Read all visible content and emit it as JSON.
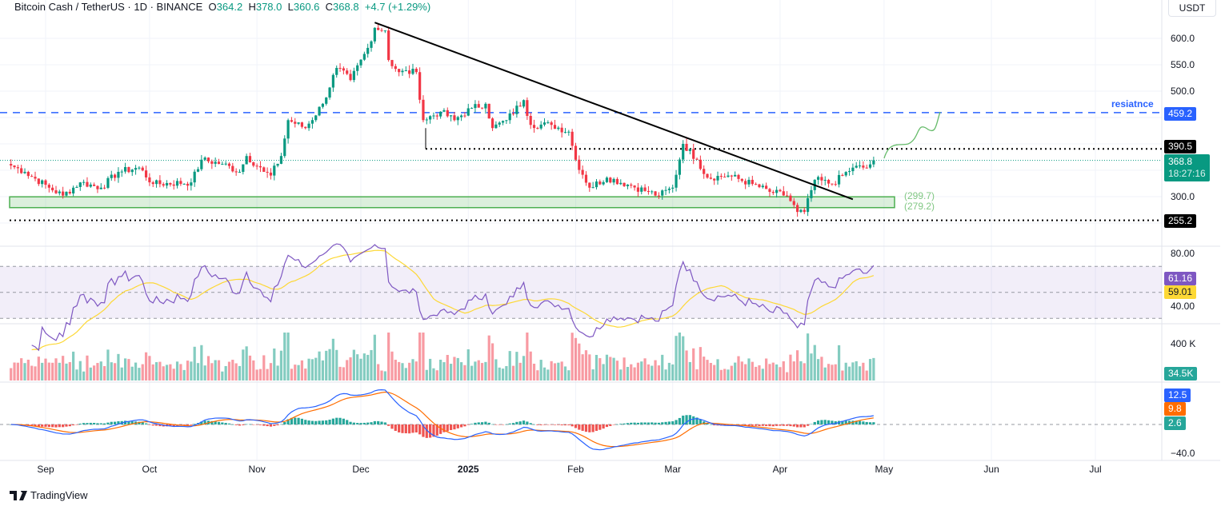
{
  "header": {
    "symbol": "Bitcoin Cash / TetherUS",
    "interval": "1D",
    "exchange": "BINANCE",
    "open": "364.2",
    "high": "378.0",
    "low": "360.6",
    "close": "368.8",
    "change": "+4.7 (+1.29%)"
  },
  "currency": "USDT",
  "price_axis": [
    "600.0",
    "550.0",
    "500.0",
    "300.0"
  ],
  "tags": {
    "resistance": "459.2",
    "level_390": "390.5",
    "current": "368.8",
    "countdown": "18:27:16",
    "level_255": "255.2",
    "rsi": "61.16",
    "rsi_ma": "59.01",
    "volume": "34.5K",
    "macd": "12.5",
    "signal": "9.8",
    "hist": "2.6"
  },
  "annotations": {
    "resistance_label": "resiatnce",
    "zone_top": "(299.7)",
    "zone_bottom": "(279.2)"
  },
  "rsi_axis": [
    "80.00",
    "40.00"
  ],
  "volume_axis": [
    "400 K"
  ],
  "macd_axis": [
    "−40.0"
  ],
  "x_axis": [
    {
      "label": "Sep",
      "date": "2024-09-01"
    },
    {
      "label": "Oct",
      "date": "2024-10-01"
    },
    {
      "label": "Nov",
      "date": "2024-11-01"
    },
    {
      "label": "Dec",
      "date": "2024-12-01"
    },
    {
      "label": "2025",
      "date": "2025-01-01"
    },
    {
      "label": "Feb",
      "date": "2025-02-01"
    },
    {
      "label": "Mar",
      "date": "2025-03-01"
    },
    {
      "label": "Apr",
      "date": "2025-04-01"
    },
    {
      "label": "May",
      "date": "2025-05-01"
    },
    {
      "label": "Jun",
      "date": "2025-06-01"
    },
    {
      "label": "Jul",
      "date": "2025-07-01"
    }
  ],
  "footer": {
    "brand": "TradingView"
  },
  "colors": {
    "up": "#089981",
    "down": "#f23645",
    "resistance": "#2962ff",
    "zone": "#4caf50",
    "rsi": "#7e57c2",
    "rsi_ma": "#fdd835",
    "macd": "#2962ff",
    "signal": "#ff6d00"
  },
  "chart_data": {
    "type": "candlestick",
    "unit": "USDT",
    "ylim": [
      240,
      640
    ],
    "closes_approx": [
      [
        "2024-08-22",
        359
      ],
      [
        "2024-08-26",
        347
      ],
      [
        "2024-09-02",
        317
      ],
      [
        "2024-09-06",
        302
      ],
      [
        "2024-09-11",
        327
      ],
      [
        "2024-09-17",
        317
      ],
      [
        "2024-09-22",
        347
      ],
      [
        "2024-09-28",
        355
      ],
      [
        "2024-10-02",
        324
      ],
      [
        "2024-10-13",
        327
      ],
      [
        "2024-10-16",
        370
      ],
      [
        "2024-10-22",
        362
      ],
      [
        "2024-10-27",
        347
      ],
      [
        "2024-10-29",
        377
      ],
      [
        "2024-11-03",
        347
      ],
      [
        "2024-11-05",
        340
      ],
      [
        "2024-11-08",
        377
      ],
      [
        "2024-11-10",
        445
      ],
      [
        "2024-11-15",
        430
      ],
      [
        "2024-11-20",
        476
      ],
      [
        "2024-11-24",
        544
      ],
      [
        "2024-11-28",
        521
      ],
      [
        "2024-12-03",
        582
      ],
      [
        "2024-12-05",
        620
      ],
      [
        "2024-12-08",
        615
      ],
      [
        "2024-12-09",
        559
      ],
      [
        "2024-12-12",
        536
      ],
      [
        "2024-12-17",
        536
      ],
      [
        "2024-12-19",
        445
      ],
      [
        "2024-12-24",
        461
      ],
      [
        "2024-12-28",
        445
      ],
      [
        "2025-01-02",
        468
      ],
      [
        "2025-01-06",
        476
      ],
      [
        "2025-01-08",
        430
      ],
      [
        "2025-01-12",
        445
      ],
      [
        "2025-01-17",
        483
      ],
      [
        "2025-01-19",
        436
      ],
      [
        "2025-01-25",
        436
      ],
      [
        "2025-01-30",
        423
      ],
      [
        "2025-02-01",
        370
      ],
      [
        "2025-02-05",
        317
      ],
      [
        "2025-02-10",
        336
      ],
      [
        "2025-02-17",
        321
      ],
      [
        "2025-02-22",
        309
      ],
      [
        "2025-02-25",
        302
      ],
      [
        "2025-03-01",
        317
      ],
      [
        "2025-03-04",
        400
      ],
      [
        "2025-03-08",
        370
      ],
      [
        "2025-03-11",
        336
      ],
      [
        "2025-03-17",
        340
      ],
      [
        "2025-03-24",
        324
      ],
      [
        "2025-03-29",
        309
      ],
      [
        "2025-04-03",
        302
      ],
      [
        "2025-04-06",
        271
      ],
      [
        "2025-04-08",
        271
      ],
      [
        "2025-04-11",
        332
      ],
      [
        "2025-04-16",
        324
      ],
      [
        "2025-04-22",
        355
      ],
      [
        "2025-04-26",
        355
      ],
      [
        "2025-04-28",
        368.8
      ]
    ],
    "levels": {
      "resistance": 459.2,
      "horizontal_1": 390.5,
      "horizontal_2": 255.2,
      "zone": [
        279.2,
        299.7
      ]
    },
    "trendline": [
      [
        "2024-12-05",
        630
      ],
      [
        "2025-04-22",
        295
      ]
    ],
    "indicators": [
      "RSI 14 with MA",
      "Volume",
      "MACD"
    ]
  }
}
